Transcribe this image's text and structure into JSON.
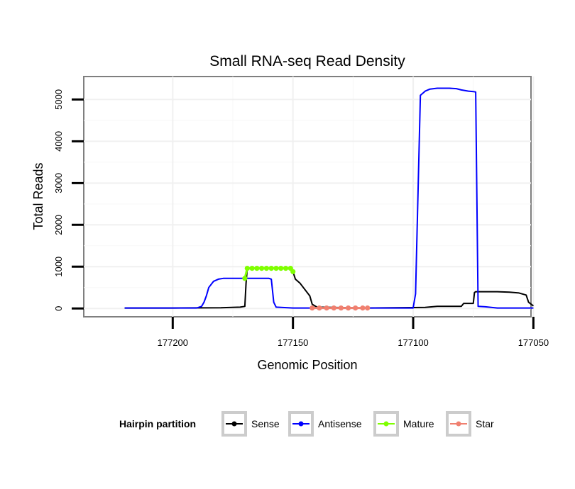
{
  "chart_data": {
    "type": "line",
    "title": "Small RNA-seq Read Density",
    "xlabel": "Genomic Position",
    "ylabel": "Total Reads",
    "x_reversed": true,
    "xlim": [
      177237,
      177051
    ],
    "ylim": [
      -200,
      5550
    ],
    "x_ticks": [
      177200,
      177150,
      177100,
      177050
    ],
    "y_ticks": [
      0,
      1000,
      2000,
      3000,
      4000,
      5000
    ],
    "legend": {
      "title": "Hairpin partition",
      "position": "bottom",
      "entries": [
        "Sense",
        "Antisense",
        "Mature",
        "Star"
      ]
    },
    "series": [
      {
        "name": "Sense",
        "color": "#000000",
        "marker": false,
        "points": [
          [
            177220,
            10
          ],
          [
            177200,
            10
          ],
          [
            177180,
            15
          ],
          [
            177172,
            30
          ],
          [
            177170,
            50
          ],
          [
            177169.5,
            600
          ],
          [
            177169,
            950
          ],
          [
            177165,
            960
          ],
          [
            177160,
            960
          ],
          [
            177155,
            960
          ],
          [
            177151,
            950
          ],
          [
            177150,
            880
          ],
          [
            177149,
            700
          ],
          [
            177147,
            600
          ],
          [
            177145,
            450
          ],
          [
            177143,
            300
          ],
          [
            177142,
            100
          ],
          [
            177140,
            30
          ],
          [
            177120,
            10
          ],
          [
            177100,
            20
          ],
          [
            177095,
            25
          ],
          [
            177090,
            50
          ],
          [
            177080,
            50
          ],
          [
            177079,
            120
          ],
          [
            177075,
            120
          ],
          [
            177074.5,
            380
          ],
          [
            177074,
            400
          ],
          [
            177065,
            400
          ],
          [
            177060,
            390
          ],
          [
            177056,
            370
          ],
          [
            177053,
            320
          ],
          [
            177052,
            150
          ],
          [
            177050,
            60
          ]
        ]
      },
      {
        "name": "Antisense",
        "color": "#0000ff",
        "marker": false,
        "points": [
          [
            177220,
            10
          ],
          [
            177190,
            10
          ],
          [
            177188,
            50
          ],
          [
            177187,
            150
          ],
          [
            177186,
            300
          ],
          [
            177185,
            500
          ],
          [
            177183,
            650
          ],
          [
            177181,
            700
          ],
          [
            177179,
            720
          ],
          [
            177170,
            720
          ],
          [
            177160,
            720
          ],
          [
            177159,
            700
          ],
          [
            177158,
            150
          ],
          [
            177157,
            30
          ],
          [
            177150,
            10
          ],
          [
            177100,
            10
          ],
          [
            177099,
            350
          ],
          [
            177097,
            5100
          ],
          [
            177095,
            5200
          ],
          [
            177093,
            5250
          ],
          [
            177090,
            5270
          ],
          [
            177085,
            5270
          ],
          [
            177082,
            5260
          ],
          [
            177080,
            5230
          ],
          [
            177077,
            5200
          ],
          [
            177075,
            5190
          ],
          [
            177074,
            5180
          ],
          [
            177073,
            50
          ],
          [
            177070,
            40
          ],
          [
            177065,
            10
          ],
          [
            177050,
            10
          ]
        ]
      },
      {
        "name": "Mature",
        "color": "#7fff00",
        "marker": true,
        "points": [
          [
            177170,
            720
          ],
          [
            177169,
            960
          ],
          [
            177167,
            960
          ],
          [
            177165,
            960
          ],
          [
            177163,
            960
          ],
          [
            177161,
            960
          ],
          [
            177159,
            960
          ],
          [
            177157,
            960
          ],
          [
            177155,
            960
          ],
          [
            177153,
            960
          ],
          [
            177151,
            960
          ],
          [
            177150,
            880
          ]
        ]
      },
      {
        "name": "Star",
        "color": "#f08070",
        "marker": true,
        "points": [
          [
            177142,
            10
          ],
          [
            177139,
            10
          ],
          [
            177136,
            10
          ],
          [
            177133,
            10
          ],
          [
            177130,
            10
          ],
          [
            177127,
            10
          ],
          [
            177124,
            10
          ],
          [
            177121,
            10
          ],
          [
            177119,
            10
          ]
        ]
      }
    ]
  }
}
